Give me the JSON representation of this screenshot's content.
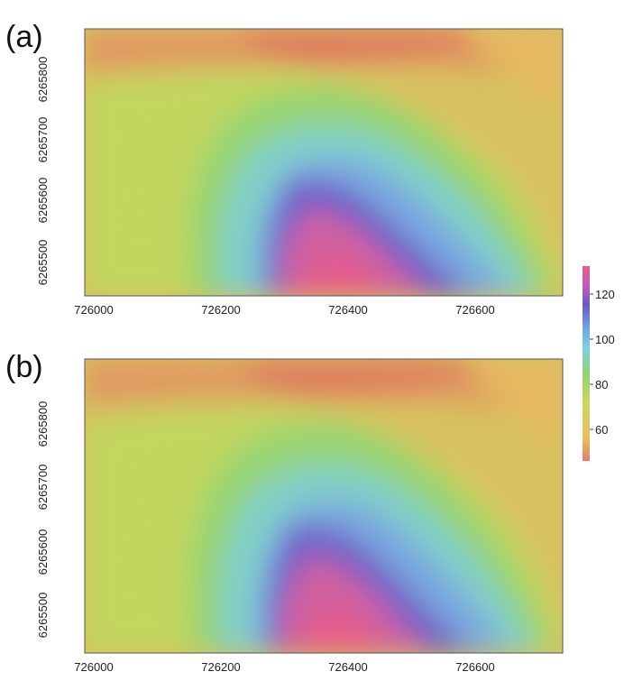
{
  "figure": {
    "panels": [
      {
        "label": "(a)",
        "x_ticks": [
          "726000",
          "726200",
          "726400",
          "726600"
        ],
        "y_ticks": [
          "6265800",
          "6265700",
          "6265600",
          "6265500"
        ]
      },
      {
        "label": "(b)",
        "x_ticks": [
          "726000",
          "726200",
          "726400",
          "726600"
        ],
        "y_ticks": [
          "6265800",
          "6265700",
          "6265600",
          "6265500"
        ]
      }
    ],
    "colorbar": {
      "ticks": [
        "120",
        "100",
        "80",
        "60"
      ],
      "colors": [
        "#e8608a",
        "#c25cb8",
        "#6a58c8",
        "#6fa8e0",
        "#7fd0e0",
        "#8fd470",
        "#c8d860",
        "#e6c060",
        "#e0806a"
      ]
    }
  }
}
